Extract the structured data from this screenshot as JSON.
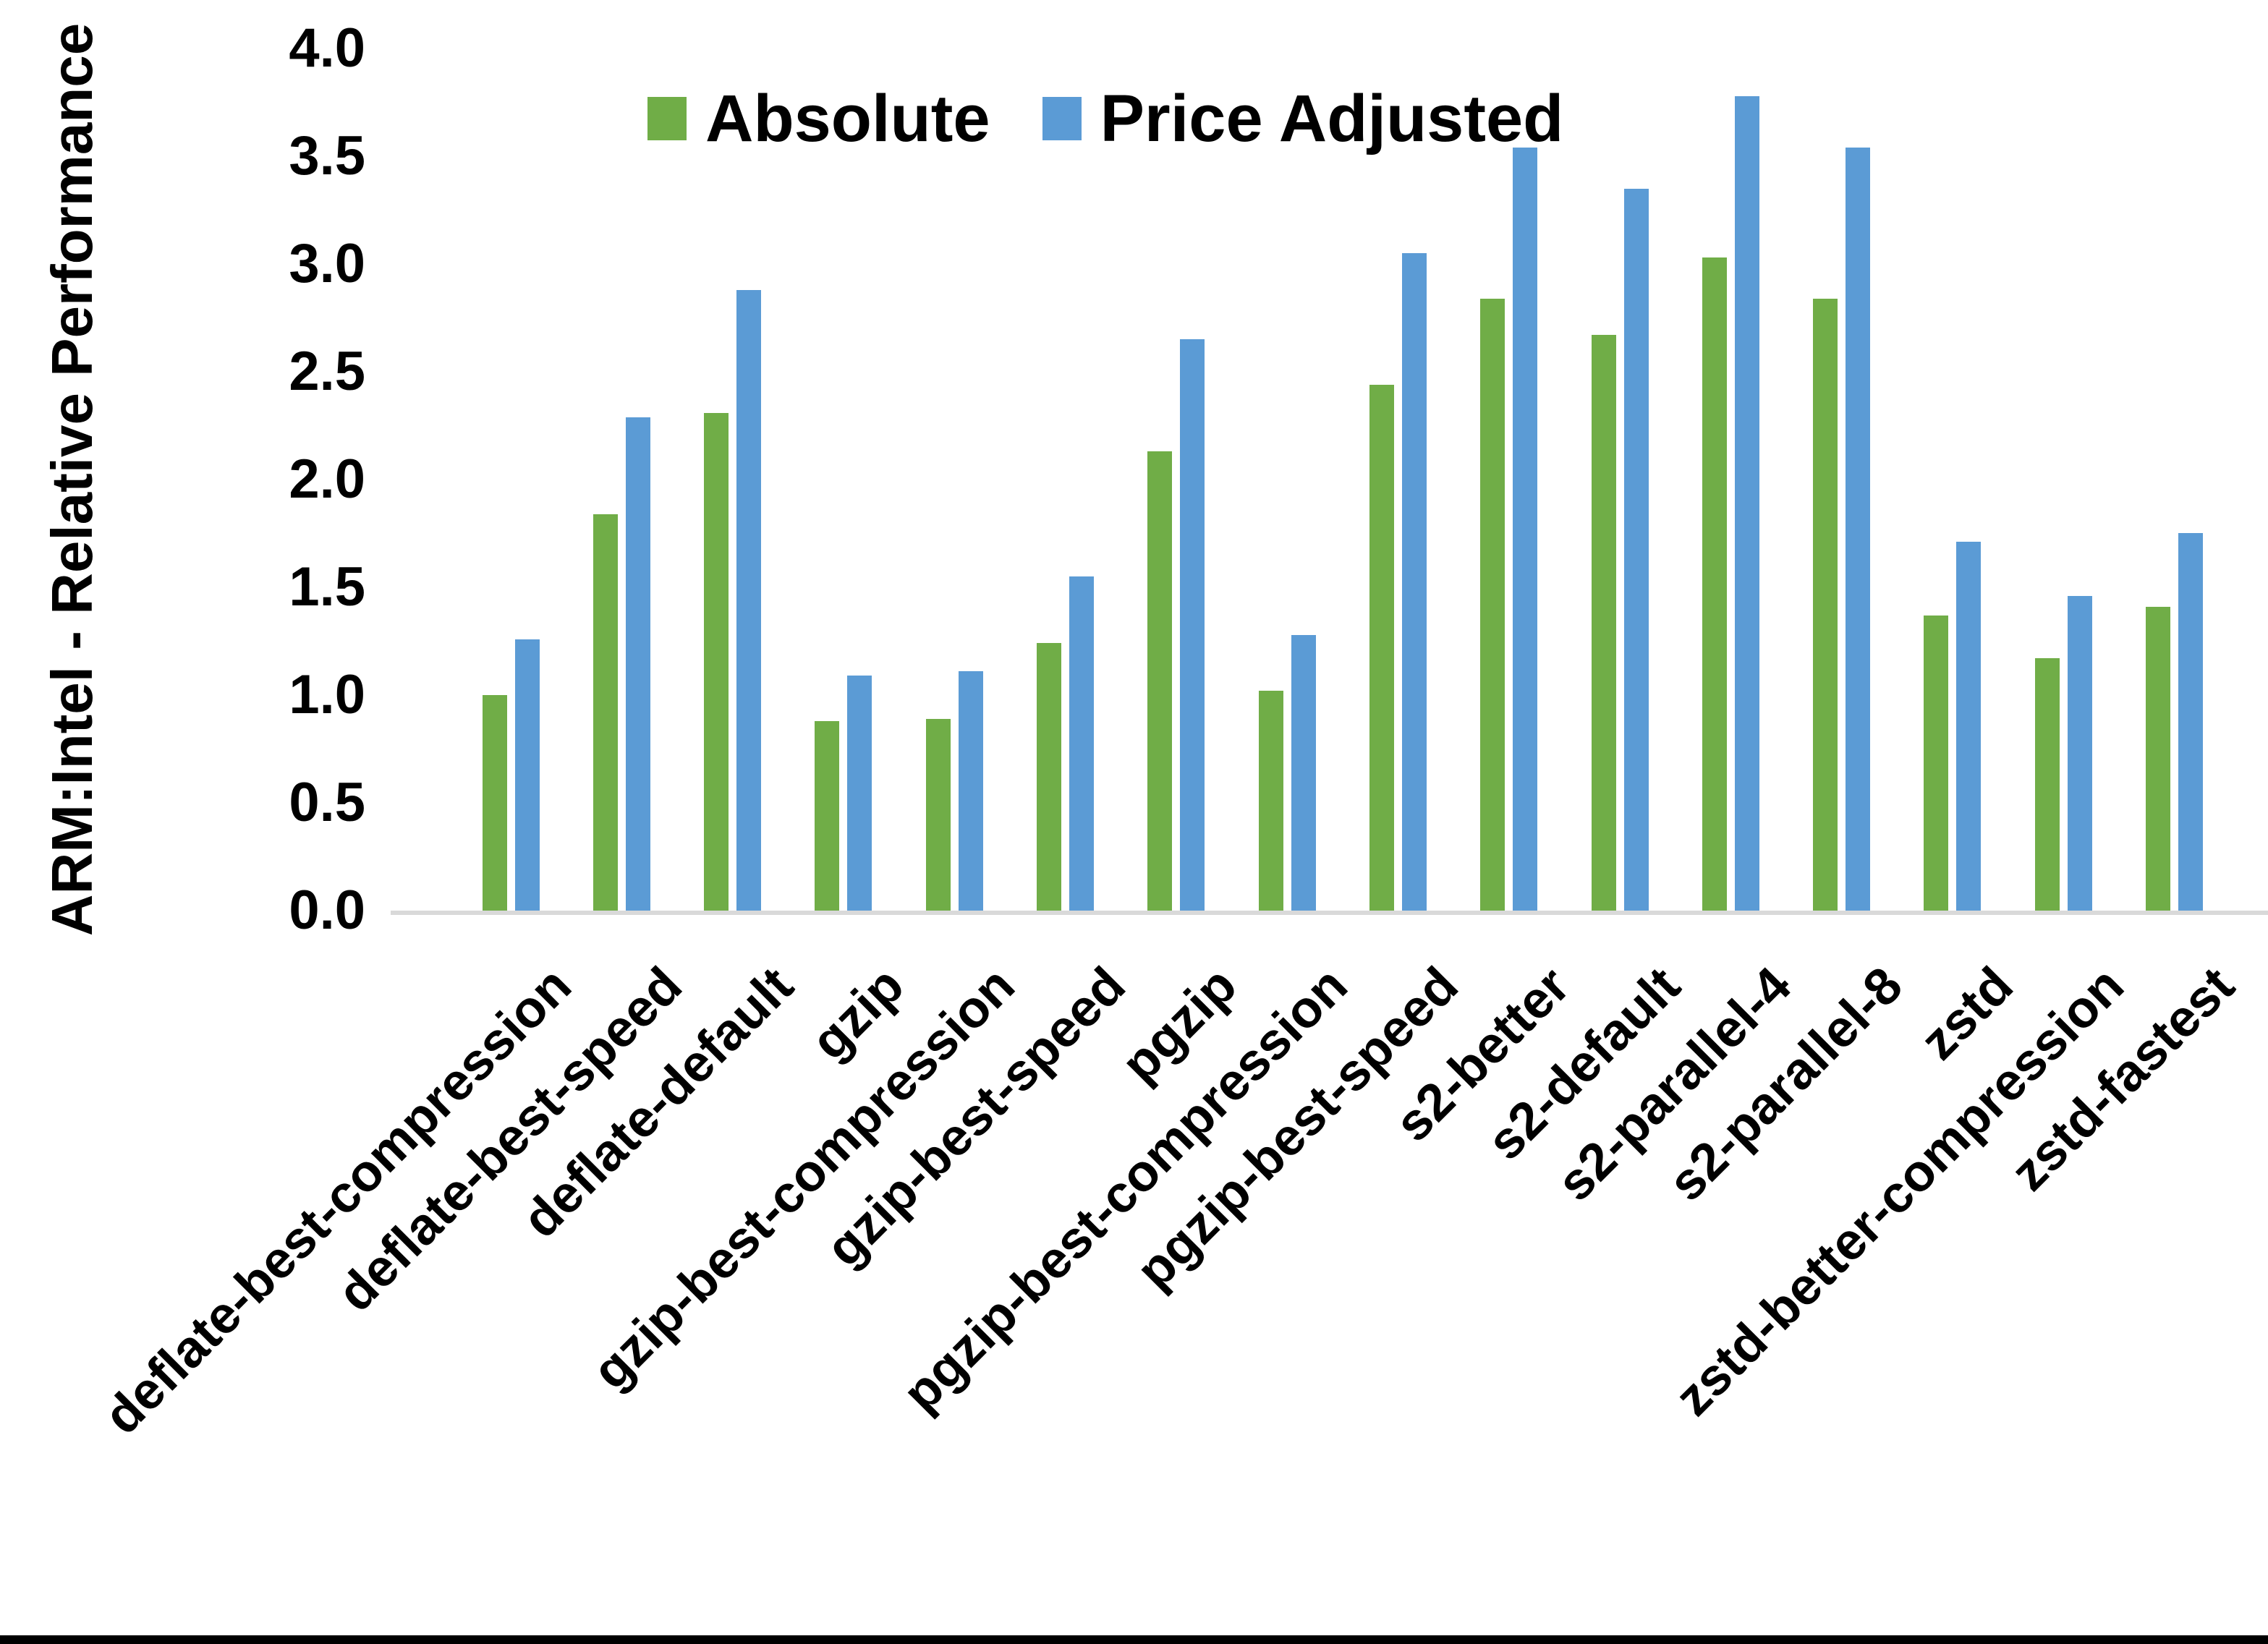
{
  "y_axis": {
    "title": "ARM:Intel - Relative Performance",
    "tick_labels": [
      "0.0",
      "0.5",
      "1.0",
      "1.5",
      "2.0",
      "2.5",
      "3.0",
      "3.5",
      "4.0"
    ]
  },
  "legend": {
    "items": [
      {
        "label": "Absolute",
        "color": "#70AD47"
      },
      {
        "label": "Price Adjusted",
        "color": "#5B9BD5"
      }
    ]
  },
  "chart_data": {
    "type": "bar",
    "title": "",
    "xlabel": "",
    "ylabel": "ARM:Intel - Relative Performance",
    "ylim": [
      0.0,
      4.0
    ],
    "ytick_step": 0.5,
    "grid": false,
    "legend_position": "top-center",
    "categories": [
      "deflate-best-compression",
      "deflate-best-speed",
      "deflate-default",
      "gzip",
      "gzip-best-compression",
      "gzip-best-speed",
      "pgzip",
      "pgzip-best-compression",
      "pgzip-best-speed",
      "s2-better",
      "s2-default",
      "s2-parallel-4",
      "s2-parallel-8",
      "zstd",
      "zstd-better-compression",
      "zstd-fastest"
    ],
    "series": [
      {
        "name": "Absolute",
        "color": "#70AD47",
        "values": [
          1.0,
          1.84,
          2.31,
          0.88,
          0.89,
          1.24,
          2.13,
          1.02,
          2.44,
          2.84,
          2.67,
          3.03,
          2.84,
          1.37,
          1.17,
          1.41
        ]
      },
      {
        "name": "Price Adjusted",
        "color": "#5B9BD5",
        "values": [
          1.26,
          2.29,
          2.88,
          1.09,
          1.11,
          1.55,
          2.65,
          1.28,
          3.05,
          3.54,
          3.35,
          3.78,
          3.54,
          1.71,
          1.46,
          1.75
        ]
      }
    ]
  }
}
